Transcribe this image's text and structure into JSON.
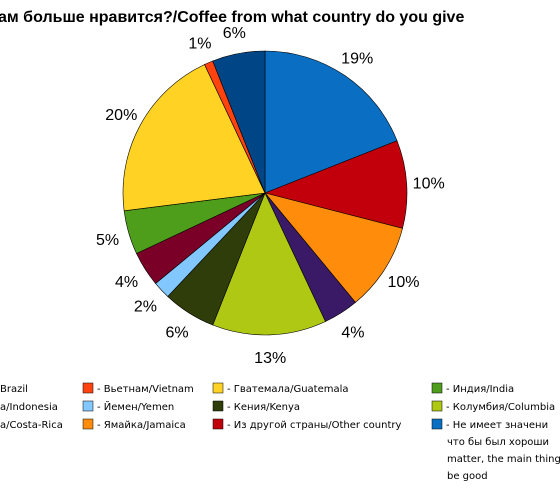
{
  "chart_data": {
    "type": "pie",
    "title": "ам больше нравится?/Coffee from what country do you give",
    "slices": [
      {
        "label": "Не имеет значения, что бы был хороший... matter, the main thing be good",
        "value": 19,
        "value_label": "19%",
        "color": "#0a6fc2"
      },
      {
        "label": "Из другой страны/Other country",
        "value": 10,
        "value_label": "10%",
        "color": "#c2000c"
      },
      {
        "label": "Ямайка/Jamaica",
        "value": 10,
        "value_label": "10%",
        "color": "#ff8c0a"
      },
      {
        "label": "",
        "value": 4,
        "value_label": "4%",
        "color": "#3a1a66"
      },
      {
        "label": "Колумбия/Columbia",
        "value": 13,
        "value_label": "13%",
        "color": "#aec814"
      },
      {
        "label": "Кения/Kenya",
        "value": 6,
        "value_label": "6%",
        "color": "#2e3d0a"
      },
      {
        "label": "Йемен/Yemen",
        "value": 2,
        "value_label": "2%",
        "color": "#82c8ff"
      },
      {
        "label": "",
        "value": 4,
        "value_label": "4%",
        "color": "#7a0028"
      },
      {
        "label": "Индия/India",
        "value": 5,
        "value_label": "5%",
        "color": "#4e9e1c"
      },
      {
        "label": "Гватемала/Guatemala",
        "value": 20,
        "value_label": "20%",
        "color": "#ffd224"
      },
      {
        "label": "Вьетнам/Vietnam",
        "value": 1,
        "value_label": "1%",
        "color": "#ff420e"
      },
      {
        "label": "",
        "value": 6,
        "value_label": "6%",
        "color": "#004586"
      }
    ],
    "legend": {
      "placement": "bottom",
      "entries": [
        {
          "text": "Brazil",
          "color": "#004586",
          "swatch_visible": false
        },
        {
          "text": "- Вьетнам/Vietnam",
          "color": "#ff420e",
          "swatch_visible": true
        },
        {
          "text": "- Гватемала/Guatemala",
          "color": "#ffd224",
          "swatch_visible": true
        },
        {
          "text": "- Индия/India",
          "color": "#4e9e1c",
          "swatch_visible": true
        },
        {
          "text": "а/Indonesia",
          "color": "#7a0028",
          "swatch_visible": false
        },
        {
          "text": "- Йемен/Yemen",
          "color": "#82c8ff",
          "swatch_visible": true
        },
        {
          "text": "- Кения/Kenya",
          "color": "#2e3d0a",
          "swatch_visible": true
        },
        {
          "text": "- Колумбия/Columbia",
          "color": "#aec814",
          "swatch_visible": true
        },
        {
          "text": "а/Costa-Rica",
          "color": "#3a1a66",
          "swatch_visible": false
        },
        {
          "text": "- Ямайка/Jamaica",
          "color": "#ff8c0a",
          "swatch_visible": true
        },
        {
          "text": "- Из другой страны/Other country",
          "color": "#c2000c",
          "swatch_visible": true
        },
        {
          "text": "- Не имеет значения, что бы был хороший... matter, the main thing be good",
          "display_lines": [
            "- Не имеет значени",
            "что бы был хороши",
            "matter, the main thing",
            "be good"
          ],
          "color": "#0a6fc2",
          "swatch_visible": true
        }
      ]
    }
  }
}
